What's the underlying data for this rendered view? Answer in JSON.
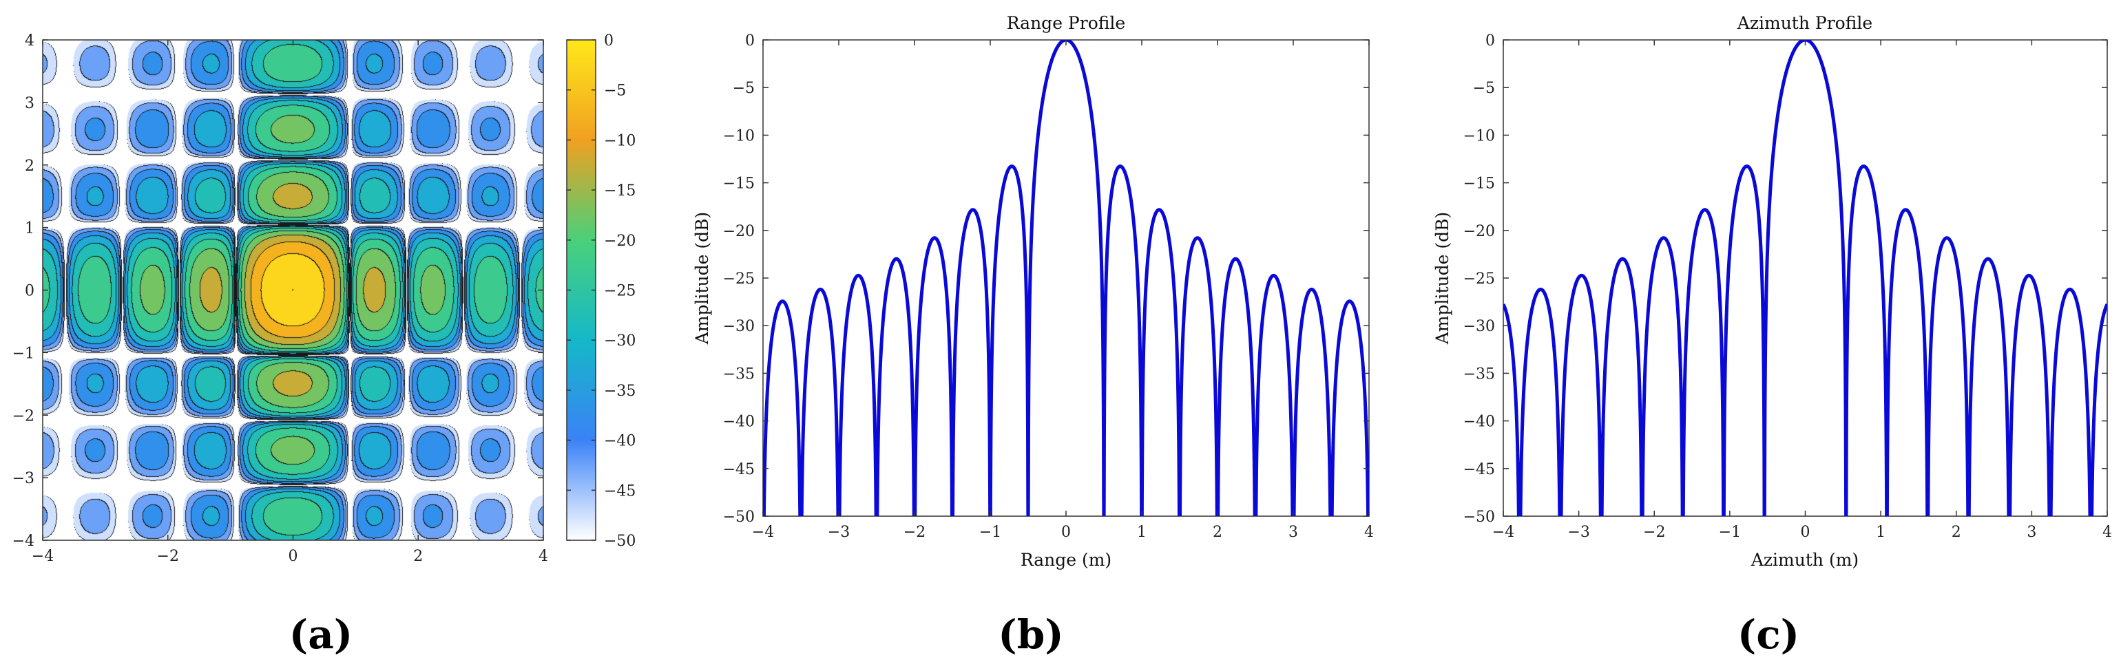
{
  "colors": {
    "curve": "#0a0ad8",
    "colormap": [
      "#ffffff",
      "#3b82f6",
      "#14b8c8",
      "#4ad07a",
      "#f0a020",
      "#ffe81a"
    ],
    "axis": "#333333",
    "contour_edge": "#1a1a1a"
  },
  "chart_data": [
    {
      "type": "heatmap",
      "panel_label": "(a)",
      "title": "",
      "xlabel": "",
      "ylabel": "",
      "xlim": [
        -4,
        4
      ],
      "ylim": [
        -4,
        4
      ],
      "xticks": [
        "−4",
        "−2",
        "0",
        "2",
        "4"
      ],
      "yticks": [
        "4",
        "3",
        "2",
        "1",
        "0",
        "−1",
        "−2",
        "−3",
        "−4"
      ],
      "function": "20*log10(|sinc(x)*sinc(y)|), 2D point-target response",
      "contour_levels_db": [
        -50,
        -45,
        -40,
        -35,
        -30,
        -25,
        -20,
        -15,
        -10,
        -5,
        0
      ],
      "colorbar": {
        "range": [
          -50,
          0
        ],
        "ticks": [
          "0",
          "−5",
          "−10",
          "−15",
          "−20",
          "−25",
          "−30",
          "−35",
          "−40",
          "−45",
          "−50"
        ]
      },
      "grid": false
    },
    {
      "type": "line",
      "panel_label": "(b)",
      "title": "Range Profile",
      "xlabel": "Range (m)",
      "ylabel": "Amplitude (dB)",
      "xlim": [
        -4,
        4
      ],
      "ylim": [
        -50,
        0
      ],
      "xticks": [
        "−4",
        "−3",
        "−2",
        "−1",
        "0",
        "1",
        "2",
        "3",
        "4"
      ],
      "yticks": [
        "0",
        "−5",
        "−10",
        "−15",
        "−20",
        "−25",
        "−30",
        "−35",
        "−40",
        "−45",
        "−50"
      ],
      "function": "20*log10(|sinc(2x)|)",
      "peak_db": 0,
      "first_sidelobe_db": -13.3,
      "grid": false
    },
    {
      "type": "line",
      "panel_label": "(c)",
      "title": "Azimuth Profile",
      "xlabel": "Azimuth (m)",
      "ylabel": "Amplitude (dB)",
      "xlim": [
        -4,
        4
      ],
      "ylim": [
        -50,
        0
      ],
      "xticks": [
        "−4",
        "−3",
        "−2",
        "−1",
        "0",
        "1",
        "2",
        "3",
        "4"
      ],
      "yticks": [
        "0",
        "−5",
        "−10",
        "−15",
        "−20",
        "−25",
        "−30",
        "−35",
        "−40",
        "−45",
        "−50"
      ],
      "function": "20*log10(|sinc(1.85x)|)",
      "peak_db": 0,
      "first_sidelobe_db": -13.3,
      "grid": false
    }
  ]
}
